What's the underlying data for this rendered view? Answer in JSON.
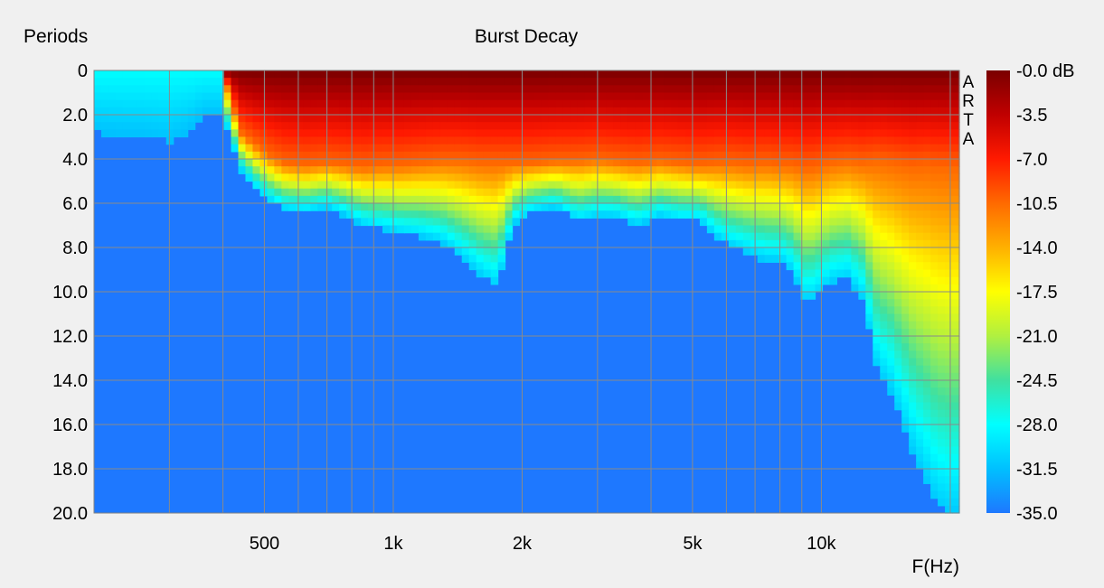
{
  "chart_data": {
    "type": "heatmap",
    "title": "Burst Decay",
    "xlabel": "F(Hz)",
    "ylabel": "Periods",
    "x_scale": "log",
    "xlim": [
      200,
      21000
    ],
    "ylim": [
      0,
      20
    ],
    "x_ticks": [
      500,
      1000,
      2000,
      5000,
      10000
    ],
    "x_tick_labels": [
      "500",
      "1k",
      "2k",
      "5k",
      "10k"
    ],
    "x_minor_grid": [
      300,
      400,
      600,
      700,
      800,
      900,
      3000,
      4000,
      6000,
      7000,
      8000,
      9000,
      20000
    ],
    "y_ticks": [
      0,
      2,
      4,
      6,
      8,
      10,
      12,
      14,
      16,
      18,
      20
    ],
    "y_tick_labels": [
      "0",
      "2.0",
      "4.0",
      "6.0",
      "8.0",
      "10.0",
      "12.0",
      "14.0",
      "16.0",
      "18.0",
      "20.0"
    ],
    "grid": true,
    "watermark": [
      "A",
      "R",
      "T",
      "A"
    ],
    "colorbar": {
      "unit": "dB",
      "range": [
        -35,
        0
      ],
      "tick_labels": [
        "-0.0 dB",
        "-3.5",
        "-7.0",
        "-10.5",
        "-14.0",
        "-17.5",
        "-21.0",
        "-24.5",
        "-28.0",
        "-31.5",
        "-35.0"
      ],
      "colors": [
        "#7a0000",
        "#c00000",
        "#ff1a00",
        "#ff6a00",
        "#ffb000",
        "#ffff00",
        "#b0f040",
        "#40e0a0",
        "#00ffff",
        "#00c0ff",
        "#1e78ff"
      ]
    },
    "decay_profile": {
      "frequency_hz": [
        200,
        260,
        300,
        330,
        360,
        400,
        440,
        480,
        520,
        560,
        620,
        700,
        780,
        850,
        950,
        1050,
        1150,
        1300,
        1450,
        1600,
        1750,
        1900,
        2100,
        2400,
        2700,
        3000,
        3300,
        3700,
        4200,
        4700,
        5200,
        5700,
        6200,
        6800,
        7400,
        8000,
        8600,
        9200,
        9800,
        10500,
        11500,
        12500,
        13500,
        14500,
        15500,
        16500,
        17500,
        18500,
        19500,
        20500,
        21000
      ],
      "decay_periods": [
        2.8,
        3.0,
        3.2,
        2.8,
        2.0,
        2.0,
        4.5,
        5.4,
        6.0,
        6.3,
        6.4,
        6.2,
        6.6,
        7.0,
        7.2,
        7.4,
        7.5,
        7.8,
        8.5,
        9.3,
        9.8,
        7.0,
        6.4,
        6.2,
        6.8,
        6.6,
        6.6,
        7.0,
        6.6,
        6.8,
        6.8,
        7.6,
        8.0,
        8.3,
        8.6,
        8.6,
        9.2,
        10.6,
        10.2,
        9.6,
        9.4,
        10.4,
        13.6,
        14.5,
        16.0,
        17.5,
        18.5,
        19.5,
        20.0,
        20.0,
        20.0
      ],
      "hot_zone_periods": [
        0.0,
        0.0,
        0.0,
        0.0,
        0.0,
        0.0,
        2.8,
        3.4,
        3.9,
        4.2,
        4.3,
        4.2,
        4.3,
        4.4,
        4.3,
        4.3,
        4.2,
        4.1,
        4.1,
        4.2,
        4.2,
        4.2,
        4.2,
        4.1,
        4.1,
        4.0,
        4.1,
        4.2,
        4.1,
        4.2,
        4.3,
        4.2,
        4.2,
        4.3,
        4.2,
        4.3,
        4.3,
        4.5,
        4.4,
        4.2,
        4.1,
        4.2,
        4.1,
        4.2,
        4.3,
        4.4,
        4.3,
        4.4,
        4.4,
        4.4,
        4.4
      ]
    }
  }
}
